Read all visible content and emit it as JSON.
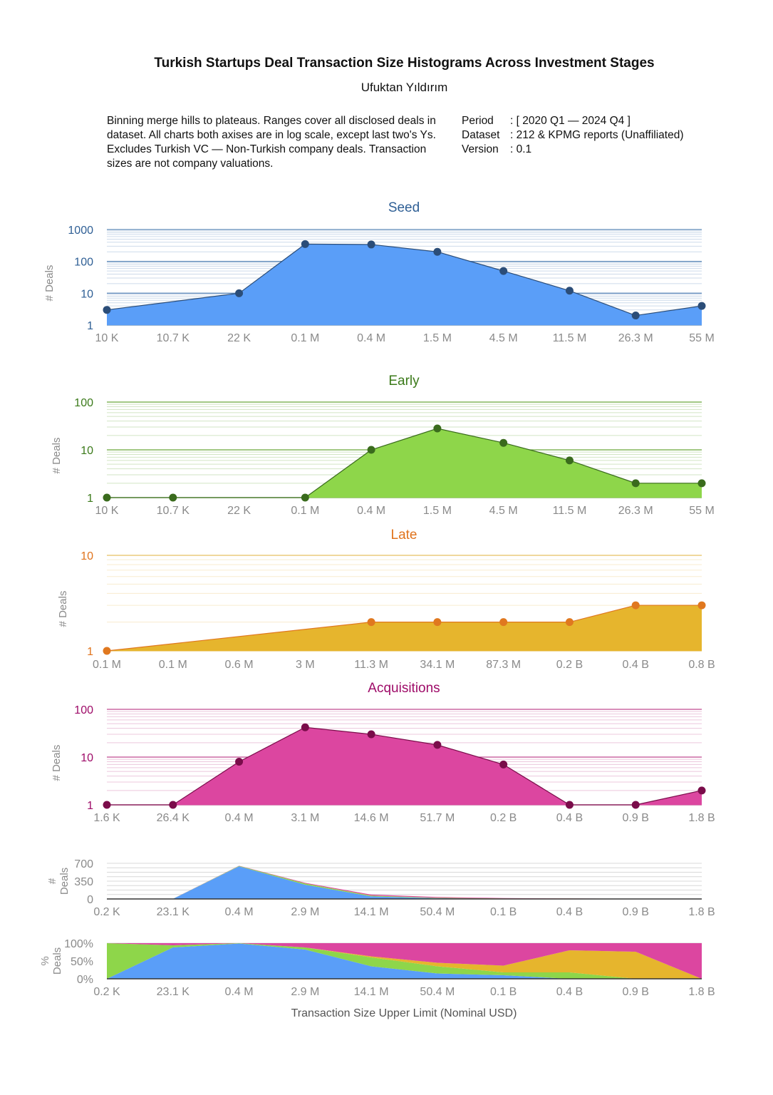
{
  "header": {
    "title": "Turkish Startups Deal Transaction Size Histograms Across Investment Stages",
    "author": "Ufuktan Yıldırım",
    "description": "Binning merge hills to plateaus. Ranges cover all disclosed deals in dataset. All charts both axises are in log scale, except last two's Ys. Excludes Turkish VC — Non-Turkish company deals. Transaction sizes are not company valuations.",
    "meta": [
      {
        "key": "Period",
        "value": ": [ 2020 Q1 — 2024 Q4 ]"
      },
      {
        "key": "Dataset",
        "value": ": 212 & KPMG reports (Unaffiliated)"
      },
      {
        "key": "Version",
        "value": ": 0.1"
      }
    ]
  },
  "chart_data": [
    {
      "id": "seed",
      "type": "area",
      "title": "Seed",
      "ylabel": "# Deals",
      "yscale": "log",
      "ylim": [
        1,
        1000
      ],
      "yticks": [
        "1",
        "10",
        "100",
        "1000"
      ],
      "categories": [
        "10 K",
        "10.7 K",
        "22 K",
        "0.1 M",
        "0.4 M",
        "1.5 M",
        "4.5 M",
        "11.5 M",
        "26.3 M",
        "55 M"
      ],
      "values": [
        3,
        null,
        10,
        350,
        340,
        200,
        50,
        12,
        2,
        4
      ],
      "colors": {
        "fill": "#5a9ef8",
        "marker": "#2b4d78",
        "title": "#2f5f95",
        "grid": "#5a86b8"
      }
    },
    {
      "id": "early",
      "type": "area",
      "title": "Early",
      "ylabel": "# Deals",
      "yscale": "log",
      "ylim": [
        1,
        100
      ],
      "yticks": [
        "1",
        "10",
        "100"
      ],
      "categories": [
        "10 K",
        "10.7 K",
        "22 K",
        "0.1 M",
        "0.4 M",
        "1.5 M",
        "4.5 M",
        "11.5 M",
        "26.3 M",
        "55 M"
      ],
      "values": [
        1,
        1,
        null,
        1,
        10,
        28,
        14,
        6,
        2,
        2
      ],
      "colors": {
        "fill": "#8ed64a",
        "marker": "#3a6b1d",
        "title": "#3b7a1a",
        "grid": "#6aa83a"
      }
    },
    {
      "id": "late",
      "type": "area",
      "title": "Late",
      "ylabel": "# Deals",
      "yscale": "log",
      "ylim": [
        1,
        10
      ],
      "yticks": [
        "1",
        "10"
      ],
      "categories": [
        "0.1 M",
        "0.1 M",
        "0.6 M",
        "3 M",
        "11.3 M",
        "34.1 M",
        "87.3 M",
        "0.2 B",
        "0.4 B",
        "0.8 B"
      ],
      "values": [
        1,
        null,
        null,
        null,
        2,
        2,
        2,
        2,
        3,
        3
      ],
      "colors": {
        "fill": "#e6b52d",
        "marker": "#e0781f",
        "title": "#e0731c",
        "grid": "#e8c060"
      }
    },
    {
      "id": "acquisitions",
      "type": "area",
      "title": "Acquisitions",
      "ylabel": "# Deals",
      "yscale": "log",
      "ylim": [
        1,
        100
      ],
      "yticks": [
        "1",
        "10",
        "100"
      ],
      "categories": [
        "1.6 K",
        "26.4 K",
        "0.4 M",
        "3.1 M",
        "14.6 M",
        "51.7 M",
        "0.2 B",
        "0.4 B",
        "0.9 B",
        "1.8 B"
      ],
      "values": [
        1,
        1,
        8,
        42,
        30,
        18,
        7,
        1,
        1,
        2
      ],
      "colors": {
        "fill": "#dc46a0",
        "marker": "#7a0c4a",
        "title": "#9e0b68",
        "grid": "#c04a90"
      }
    },
    {
      "id": "combined",
      "type": "stacked-area",
      "ylabel": "# Deals",
      "yscale": "linear",
      "ylim": [
        0,
        700
      ],
      "yticks": [
        "0",
        "350",
        "700"
      ],
      "categories": [
        "0.2 K",
        "23.1 K",
        "0.4 M",
        "2.9 M",
        "14.1 M",
        "50.4 M",
        "0.1 B",
        "0.4 B",
        "0.9 B",
        "1.8 B"
      ],
      "series": [
        {
          "id": "seed",
          "values": [
            0,
            2,
            640,
            280,
            50,
            15,
            5,
            0,
            0,
            0
          ],
          "color": "#5a9ef8"
        },
        {
          "id": "early",
          "values": [
            3,
            1,
            10,
            25,
            15,
            8,
            3,
            2,
            0,
            0
          ],
          "color": "#8ed64a"
        },
        {
          "id": "late",
          "values": [
            0,
            0,
            0,
            0,
            2,
            2,
            2,
            6,
            3,
            0
          ],
          "color": "#e6b52d"
        },
        {
          "id": "acquisitions",
          "values": [
            0,
            0,
            2,
            12,
            18,
            14,
            7,
            2,
            1,
            2
          ],
          "color": "#dc46a0"
        }
      ]
    },
    {
      "id": "percent",
      "type": "stacked-area-percent",
      "ylabel": "% Deals",
      "yscale": "linear",
      "ylim": [
        0,
        100
      ],
      "yticks": [
        "0%",
        "50%",
        "100%"
      ],
      "xlabel": "Transaction Size Upper Limit (Nominal USD)",
      "categories": [
        "0.2 K",
        "23.1 K",
        "0.4 M",
        "2.9 M",
        "14.1 M",
        "50.4 M",
        "0.1 B",
        "0.4 B",
        "0.9 B",
        "1.8 B"
      ],
      "series": [
        {
          "id": "seed",
          "values": [
            0,
            88,
            99,
            82,
            35,
            15,
            10,
            0,
            0,
            0
          ],
          "color": "#5a9ef8"
        },
        {
          "id": "early",
          "values": [
            100,
            6,
            1,
            6,
            25,
            20,
            8,
            18,
            0,
            0
          ],
          "color": "#8ed64a"
        },
        {
          "id": "late",
          "values": [
            0,
            0,
            0,
            0,
            3,
            10,
            19,
            62,
            76,
            0
          ],
          "color": "#e6b52d"
        },
        {
          "id": "acquisitions",
          "values": [
            0,
            6,
            0,
            12,
            37,
            55,
            63,
            20,
            24,
            100
          ],
          "color": "#dc46a0"
        }
      ]
    }
  ]
}
